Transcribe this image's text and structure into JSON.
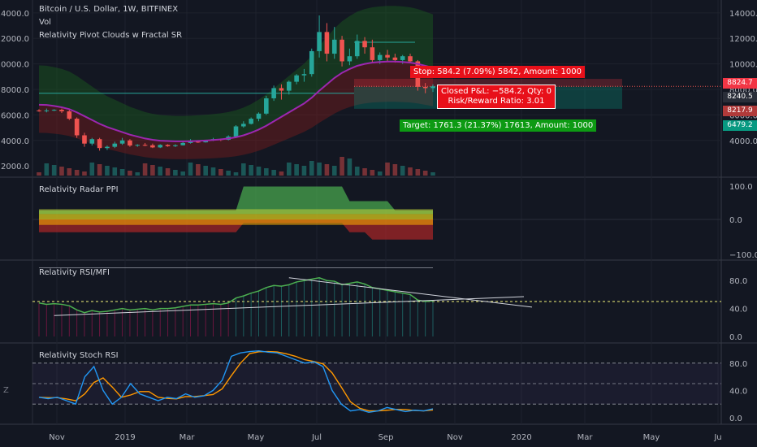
{
  "header": {
    "symbol": "Bitcoin / U.S. Dollar, 1W, BITFINEX",
    "vol": "Vol",
    "indicator": "Relativity Pivot Clouds w Fractal SR"
  },
  "panes": {
    "radar": "Relativity Radar PPI",
    "rsi": "Relativity RSI/MFI",
    "stoch": "Relativity Stoch RSI"
  },
  "trade": {
    "stop": "Stop: 584.2 (7.09%) 5842, Amount: 1000",
    "closed1": "Closed P&L: −584.2, Qty: 0",
    "closed2": "Risk/Reward Ratio: 3.01",
    "target": "Target: 1761.3 (21.37%) 17613, Amount: 1000"
  },
  "price_tags": {
    "stop": "8824.7",
    "last": "8240.5",
    "entry": "8217.9",
    "target": "6479.2"
  },
  "colors": {
    "bg": "#131722",
    "up": "#26a69a",
    "down": "#ef5350",
    "ma": "#9c27b0",
    "stop_tag": "#f23645",
    "target_tag": "#089981"
  },
  "chart_data": {
    "type": "candlestick",
    "x_ticks": [
      "Nov",
      "2019",
      "Mar",
      "May",
      "Jul",
      "Sep",
      "Nov",
      "2020",
      "Mar",
      "May",
      "Ju"
    ],
    "price_axis": {
      "ticks_right": [
        "14000.0",
        "12000.0",
        "10000.0",
        "8000.0",
        "6000.0",
        "4000.0"
      ],
      "ticks_left": [
        "14000.0",
        "12000.0",
        "10000.0",
        "8000.0",
        "6000.0",
        "4000.0",
        "2000.0"
      ],
      "ylim": [
        1500,
        14500
      ]
    },
    "radar_axis": {
      "ticks": [
        "100.0",
        "0.0",
        "−100.0"
      ]
    },
    "rsi_axis": {
      "ticks": [
        "80.0",
        "40.0",
        "0.0"
      ]
    },
    "stoch_axis": {
      "ticks": [
        "80.0",
        "40.0",
        "0.0"
      ]
    },
    "candles": [
      [
        6350,
        6450,
        6250,
        6300
      ],
      [
        6300,
        6500,
        6200,
        6350
      ],
      [
        6350,
        6450,
        6300,
        6400
      ],
      [
        6400,
        6500,
        6150,
        6280
      ],
      [
        6280,
        6400,
        5600,
        5700
      ],
      [
        5700,
        5800,
        4200,
        4400
      ],
      [
        4400,
        4600,
        3500,
        3750
      ],
      [
        3750,
        4200,
        3600,
        4100
      ],
      [
        4100,
        4200,
        3200,
        3400
      ],
      [
        3400,
        3600,
        3250,
        3500
      ],
      [
        3500,
        3900,
        3400,
        3750
      ],
      [
        3750,
        4200,
        3650,
        4000
      ],
      [
        4000,
        4100,
        3500,
        3600
      ],
      [
        3600,
        3700,
        3500,
        3650
      ],
      [
        3650,
        3800,
        3550,
        3620
      ],
      [
        3620,
        3750,
        3400,
        3450
      ],
      [
        3450,
        3700,
        3400,
        3650
      ],
      [
        3650,
        3700,
        3500,
        3550
      ],
      [
        3550,
        3700,
        3480,
        3620
      ],
      [
        3620,
        3900,
        3600,
        3800
      ],
      [
        3800,
        4100,
        3750,
        3900
      ],
      [
        3900,
        4000,
        3800,
        3850
      ],
      [
        3850,
        4050,
        3830,
        4000
      ],
      [
        4000,
        4200,
        3950,
        4100
      ],
      [
        4100,
        4150,
        3950,
        4050
      ],
      [
        4050,
        4400,
        4000,
        4300
      ],
      [
        4300,
        5200,
        4200,
        5100
      ],
      [
        5100,
        5500,
        5000,
        5300
      ],
      [
        5300,
        5800,
        5250,
        5700
      ],
      [
        5700,
        6200,
        5500,
        6100
      ],
      [
        6100,
        7500,
        6000,
        7300
      ],
      [
        7300,
        8300,
        7100,
        8100
      ],
      [
        8100,
        8400,
        7200,
        7900
      ],
      [
        7900,
        8700,
        7600,
        8600
      ],
      [
        8600,
        9200,
        8400,
        9100
      ],
      [
        9100,
        9600,
        8600,
        9200
      ],
      [
        9200,
        11200,
        9000,
        11000
      ],
      [
        11000,
        13800,
        10500,
        12500
      ],
      [
        12500,
        13200,
        10200,
        10800
      ],
      [
        10800,
        12900,
        10400,
        11900
      ],
      [
        11900,
        12200,
        9800,
        10200
      ],
      [
        10200,
        11200,
        9900,
        10600
      ],
      [
        10600,
        12300,
        10400,
        11800
      ],
      [
        11800,
        12100,
        10800,
        11300
      ],
      [
        11300,
        11900,
        10100,
        10300
      ],
      [
        10300,
        10900,
        10000,
        10700
      ],
      [
        10700,
        11100,
        10200,
        10500
      ],
      [
        10500,
        10800,
        10100,
        10300
      ],
      [
        10300,
        10700,
        10000,
        10600
      ],
      [
        10600,
        10800,
        10100,
        10200
      ],
      [
        10200,
        10300,
        7900,
        8200
      ],
      [
        8200,
        8500,
        7700,
        8100
      ],
      [
        8100,
        8400,
        7800,
        8240
      ]
    ],
    "ma_line": [
      6800,
      6780,
      6700,
      6600,
      6450,
      6200,
      5900,
      5600,
      5300,
      5050,
      4850,
      4650,
      4450,
      4300,
      4150,
      4050,
      3980,
      3950,
      3930,
      3930,
      3940,
      3960,
      3990,
      4030,
      4080,
      4150,
      4250,
      4400,
      4600,
      4850,
      5150,
      5500,
      5850,
      6200,
      6550,
      6900,
      7350,
      7900,
      8400,
      8900,
      9300,
      9600,
      9850,
      10000,
      10100,
      10150,
      10180,
      10180,
      10150,
      10100,
      10000,
      9850,
      9700
    ],
    "rsi": [
      48,
      46,
      47,
      46,
      44,
      38,
      34,
      37,
      35,
      36,
      38,
      40,
      38,
      39,
      40,
      38,
      40,
      40,
      41,
      43,
      45,
      45,
      46,
      47,
      46,
      48,
      55,
      58,
      62,
      65,
      70,
      73,
      72,
      74,
      78,
      80,
      82,
      84,
      80,
      79,
      74,
      76,
      78,
      75,
      70,
      68,
      66,
      64,
      62,
      60,
      52,
      50,
      51
    ],
    "stoch_k": [
      30,
      28,
      30,
      25,
      20,
      60,
      75,
      40,
      20,
      30,
      50,
      35,
      30,
      25,
      30,
      28,
      35,
      30,
      32,
      40,
      55,
      90,
      95,
      97,
      98,
      96,
      95,
      90,
      85,
      80,
      82,
      75,
      40,
      20,
      10,
      12,
      8,
      10,
      15,
      12,
      9,
      11,
      10,
      13
    ]
  }
}
